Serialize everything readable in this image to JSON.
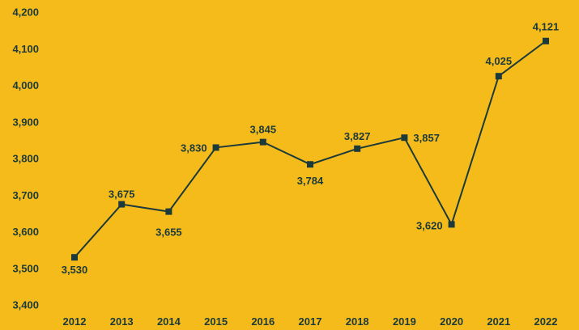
{
  "chart_data": {
    "type": "line",
    "title": "",
    "xlabel": "",
    "ylabel": "",
    "categories": [
      "2012",
      "2013",
      "2014",
      "2015",
      "2016",
      "2017",
      "2018",
      "2019",
      "2020",
      "2021",
      "2022"
    ],
    "series": [
      {
        "values": [
          3530,
          3675,
          3655,
          3830,
          3845,
          3784,
          3827,
          3857,
          3620,
          4025,
          4121
        ],
        "data_labels": [
          "3,530",
          "3,675",
          "3,655",
          "3,830",
          "3,845",
          "3,784",
          "3,827",
          "3,857",
          "3,620",
          "4,025",
          "4,121"
        ]
      }
    ],
    "ylim": [
      3400,
      4200
    ],
    "y_ticks": [
      3400,
      3500,
      3600,
      3700,
      3800,
      3900,
      4000,
      4100,
      4200
    ],
    "y_tick_labels": [
      "3,400",
      "3,500",
      "3,600",
      "3,700",
      "3,800",
      "3,900",
      "4,000",
      "4,100",
      "4,200"
    ],
    "grid": false,
    "marker": "square",
    "colors": {
      "background": "#f5bb1b",
      "line": "#1c3a3a",
      "text": "#1c3a3a"
    }
  }
}
